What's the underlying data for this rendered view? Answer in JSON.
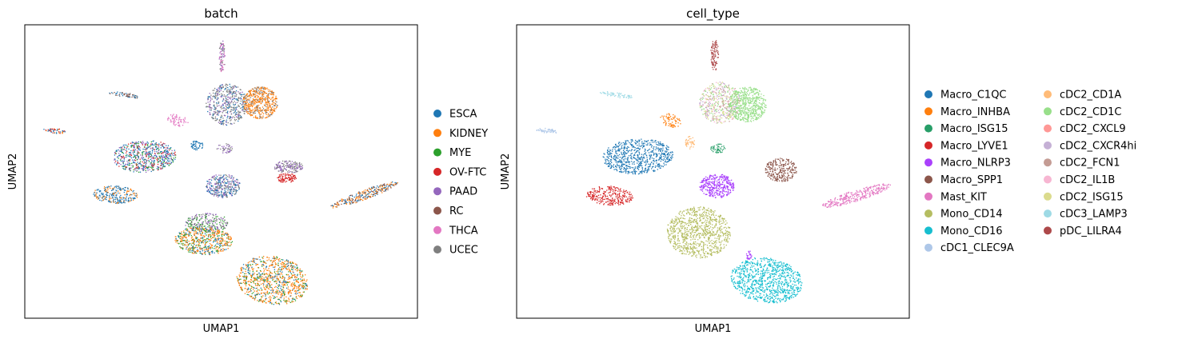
{
  "chart_data": [
    {
      "type": "scatter",
      "title": "batch",
      "xlabel": "UMAP1",
      "ylabel": "UMAP2",
      "grid": false,
      "ticks": false,
      "legend_placement": "right",
      "legend": [
        {
          "label": "ESCA",
          "color": "#1f77b4"
        },
        {
          "label": "KIDNEY",
          "color": "#ff7f0e"
        },
        {
          "label": "MYE",
          "color": "#2ca02c"
        },
        {
          "label": "OV-FTC",
          "color": "#d62728"
        },
        {
          "label": "PAAD",
          "color": "#9467bd"
        },
        {
          "label": "RC",
          "color": "#8c564b"
        },
        {
          "label": "THCA",
          "color": "#e377c2"
        },
        {
          "label": "UCEC",
          "color": "#7f7f7f"
        }
      ]
    },
    {
      "type": "scatter",
      "title": "cell_type",
      "xlabel": "UMAP1",
      "ylabel": "UMAP2",
      "grid": false,
      "ticks": false,
      "legend_placement": "right",
      "legend": [
        {
          "label": "Macro_C1QC",
          "color": "#1f77b4"
        },
        {
          "label": "Macro_INHBA",
          "color": "#ff7f0e"
        },
        {
          "label": "Macro_ISG15",
          "color": "#279e68"
        },
        {
          "label": "Macro_LYVE1",
          "color": "#d62728"
        },
        {
          "label": "Macro_NLRP3",
          "color": "#aa40fc"
        },
        {
          "label": "Macro_SPP1",
          "color": "#8c564b"
        },
        {
          "label": "Mast_KIT",
          "color": "#e377c2"
        },
        {
          "label": "Mono_CD14",
          "color": "#b5bd61"
        },
        {
          "label": "Mono_CD16",
          "color": "#17becf"
        },
        {
          "label": "cDC1_CLEC9A",
          "color": "#aec7e8"
        },
        {
          "label": "cDC2_CD1A",
          "color": "#ffbb78"
        },
        {
          "label": "cDC2_CD1C",
          "color": "#98df8a"
        },
        {
          "label": "cDC2_CXCL9",
          "color": "#ff9896"
        },
        {
          "label": "cDC2_CXCR4hi",
          "color": "#c5b0d5"
        },
        {
          "label": "cDC2_FCN1",
          "color": "#c49c94"
        },
        {
          "label": "cDC2_IL1B",
          "color": "#f7b6d2"
        },
        {
          "label": "cDC2_ISG15",
          "color": "#dbdb8d"
        },
        {
          "label": "cDC3_LAMP3",
          "color": "#9edae5"
        },
        {
          "label": "pDC_LILRA4",
          "color": "#ad494a"
        }
      ]
    }
  ]
}
